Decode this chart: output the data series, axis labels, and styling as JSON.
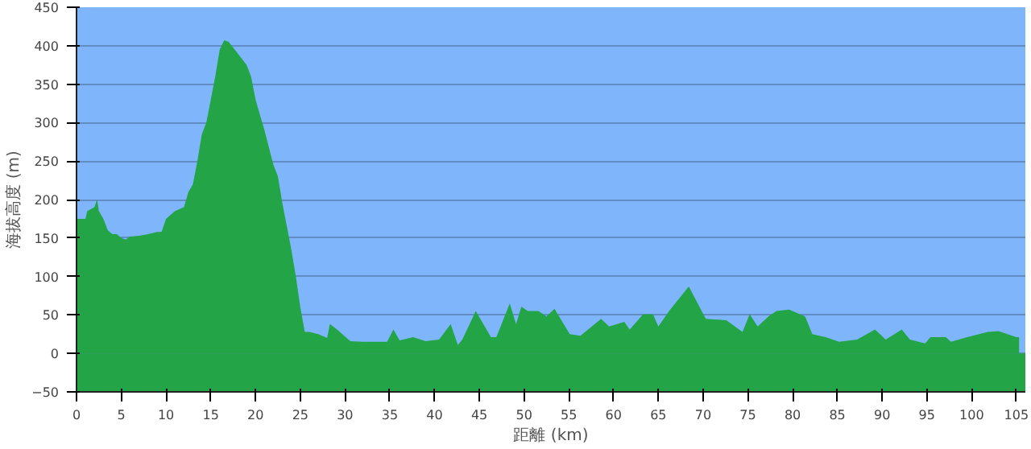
{
  "chart_data": {
    "type": "area",
    "xlabel": "距離 (km)",
    "ylabel": "海拔高度 (m)",
    "color": "#22a447",
    "x": [
      0,
      1,
      1.2,
      2,
      2.3,
      2.5,
      3,
      3.5,
      4,
      4.5,
      5,
      5.5,
      6,
      7,
      8,
      9,
      9.5,
      10,
      11,
      12,
      12.5,
      13,
      13.5,
      14,
      14.5,
      15,
      15.5,
      16,
      16.5,
      17,
      18,
      19,
      19.5,
      20,
      21,
      22,
      22.5,
      23,
      24,
      24.5,
      25,
      25.5,
      26,
      27,
      28,
      28.3,
      29,
      30,
      30.6,
      32,
      34.7,
      35.4,
      36.1,
      37.6,
      39,
      40.5,
      41.8,
      42.6,
      43.1,
      44.6,
      46.3,
      46.9,
      48.4,
      49.1,
      49.7,
      50.4,
      51.6,
      52.5,
      53.4,
      55.1,
      56.3,
      58.6,
      59.5,
      61.2,
      61.8,
      63.3,
      64.4,
      65,
      66.2,
      68.4,
      70.3,
      72.6,
      74.4,
      75.2,
      76.1,
      77.3,
      78.2,
      79.6,
      81.4,
      82.2,
      83.7,
      85.2,
      87.2,
      89.2,
      90.4,
      92.2,
      93.1,
      94.8,
      95.4,
      97.1,
      97.7,
      99.5,
      101.8,
      103,
      105,
      105.3
    ],
    "values": [
      175,
      175,
      185,
      190,
      200,
      185,
      175,
      160,
      155,
      155,
      150,
      148,
      152,
      153,
      155,
      158,
      158,
      175,
      185,
      190,
      210,
      220,
      250,
      285,
      300,
      330,
      360,
      395,
      407,
      405,
      390,
      375,
      360,
      330,
      290,
      245,
      230,
      195,
      135,
      100,
      60,
      28,
      28,
      25,
      20,
      38,
      32,
      22,
      16,
      15,
      15,
      31,
      17,
      21,
      16,
      18,
      38,
      11,
      18,
      55,
      21,
      21,
      65,
      38,
      61,
      55,
      55,
      48,
      58,
      25,
      23,
      45,
      35,
      41,
      31,
      51,
      51,
      35,
      55,
      87,
      45,
      43,
      28,
      51,
      35,
      48,
      55,
      57,
      48,
      25,
      21,
      15,
      18,
      31,
      18,
      31,
      18,
      13,
      21,
      21,
      15,
      21,
      28,
      29,
      21,
      21
    ],
    "xlim": [
      0,
      106
    ],
    "ylim": [
      -50,
      450
    ],
    "xticks": [
      0,
      5,
      10,
      15,
      20,
      25,
      30,
      35,
      40,
      45,
      50,
      55,
      60,
      65,
      70,
      75,
      80,
      85,
      90,
      95,
      100,
      105
    ],
    "yticks": [
      -50,
      0,
      50,
      100,
      150,
      200,
      250,
      300,
      350,
      400,
      450
    ],
    "grid": "y",
    "bands": [
      {
        "axis": "y",
        "from": -50,
        "to": 0,
        "color": "#22a447"
      }
    ]
  }
}
